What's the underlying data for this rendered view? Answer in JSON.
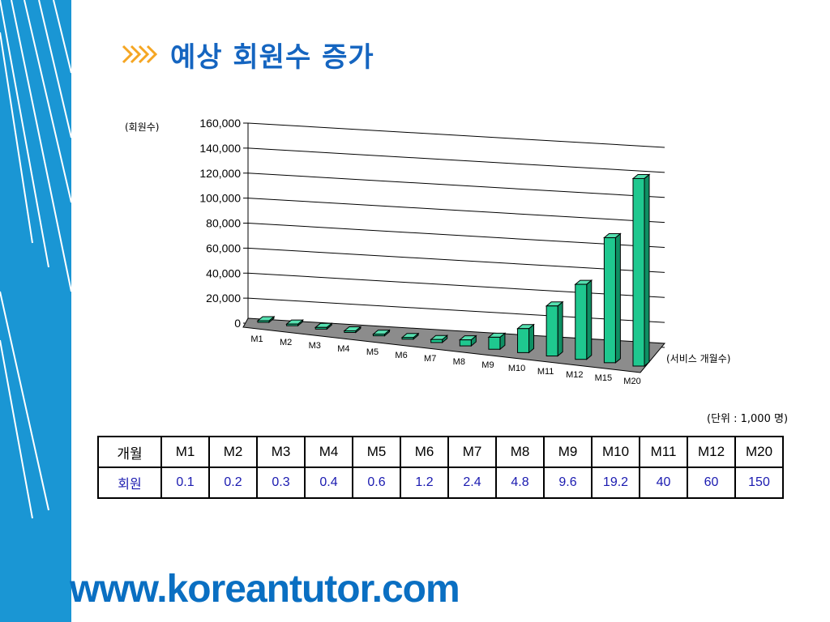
{
  "title": "예상 회원수 증가",
  "chart_data": {
    "type": "bar",
    "title": "",
    "ylabel": "(회원수)",
    "xlabel": "(서비스 개월수)",
    "ylim": [
      0,
      160000
    ],
    "yticks": [
      "0",
      "20,000",
      "40,000",
      "60,000",
      "80,000",
      "100,000",
      "120,000",
      "140,000",
      "160,000"
    ],
    "categories": [
      "M1",
      "M2",
      "M3",
      "M4",
      "M5",
      "M6",
      "M7",
      "M8",
      "M9",
      "M10",
      "M11",
      "M12",
      "M15",
      "M20"
    ],
    "values": [
      100,
      200,
      300,
      400,
      600,
      1200,
      2400,
      4800,
      9600,
      19200,
      40000,
      60000,
      100000,
      150000
    ],
    "bar_color": "#1fc88f",
    "grid": true
  },
  "unit_note": "(단위 : 1,000 명)",
  "table": {
    "row_headers": [
      "개월",
      "회원"
    ],
    "months": [
      "M1",
      "M2",
      "M3",
      "M4",
      "M5",
      "M6",
      "M7",
      "M8",
      "M9",
      "M10",
      "M11",
      "M12",
      "M20"
    ],
    "members": [
      "0.1",
      "0.2",
      "0.3",
      "0.4",
      "0.6",
      "1.2",
      "2.4",
      "4.8",
      "9.6",
      "19.2",
      "40",
      "60",
      "150"
    ]
  },
  "footer_url": "www.koreantutor.com"
}
